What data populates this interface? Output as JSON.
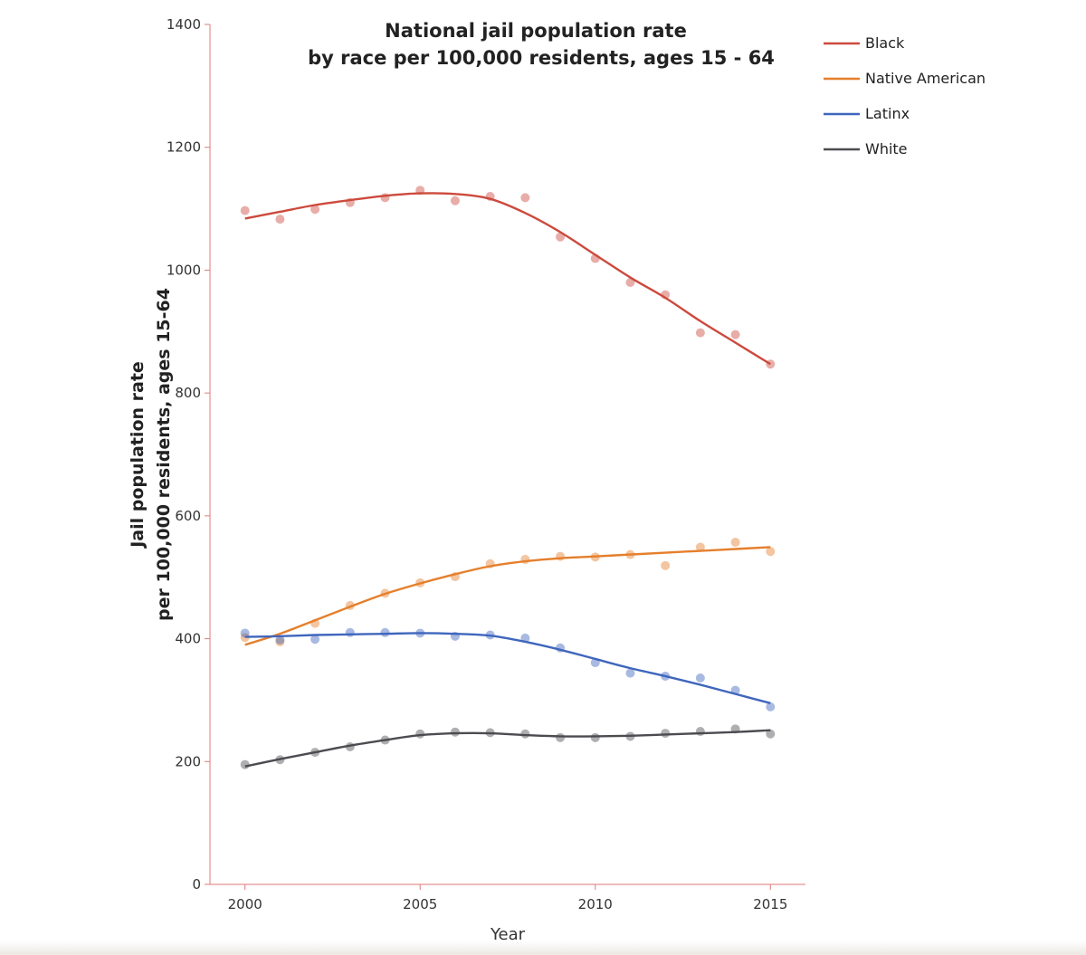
{
  "chart_data": {
    "type": "line",
    "title_line1": "National jail population rate",
    "title_line2": "by race per 100,000 residents, ages 15 - 64",
    "xlabel": "Year",
    "ylabel_line1": "Jail population rate",
    "ylabel_line2": "per 100,000 residents, ages 15-64",
    "xlim": [
      1999,
      2016
    ],
    "ylim": [
      0,
      1400
    ],
    "x_ticks": [
      2000,
      2005,
      2010,
      2015
    ],
    "y_ticks": [
      0,
      200,
      400,
      600,
      800,
      1000,
      1200,
      1400
    ],
    "axis_color": "#e07a7a",
    "x": [
      2000,
      2001,
      2002,
      2003,
      2004,
      2005,
      2006,
      2007,
      2008,
      2009,
      2010,
      2011,
      2012,
      2013,
      2014,
      2015
    ],
    "series": [
      {
        "name": "Black",
        "color": "#cc4a3d",
        "points": [
          1097,
          1083,
          1099,
          1110,
          1118,
          1130,
          1113,
          1120,
          1118,
          1054,
          1019,
          980,
          960,
          898,
          895,
          847
        ],
        "trend": [
          1084,
          1095,
          1106,
          1114,
          1121,
          1125,
          1124,
          1116,
          1093,
          1062,
          1025,
          988,
          955,
          917,
          882,
          847
        ]
      },
      {
        "name": "Native American",
        "color": "#e57f2c",
        "points": [
          402,
          395,
          425,
          454,
          474,
          491,
          501,
          522,
          529,
          534,
          533,
          537,
          519,
          549,
          557,
          542
        ],
        "trend": [
          390,
          408,
          430,
          452,
          473,
          490,
          505,
          518,
          526,
          531,
          534,
          537,
          540,
          543,
          546,
          549
        ]
      },
      {
        "name": "Latinx",
        "color": "#3f66bd",
        "points": [
          409,
          398,
          399,
          410,
          410,
          409,
          404,
          406,
          401,
          385,
          361,
          344,
          339,
          336,
          316,
          289
        ],
        "trend": [
          403,
          404,
          406,
          407,
          408,
          409,
          408,
          405,
          395,
          382,
          367,
          352,
          339,
          325,
          310,
          295
        ]
      },
      {
        "name": "White",
        "color": "#4d4b50",
        "points": [
          195,
          203,
          215,
          224,
          235,
          245,
          248,
          247,
          245,
          239,
          239,
          241,
          246,
          249,
          253,
          245
        ],
        "trend": [
          192,
          204,
          215,
          226,
          235,
          243,
          246,
          246,
          243,
          241,
          241,
          242,
          244,
          246,
          248,
          251
        ]
      }
    ],
    "legend_position": "top-right"
  }
}
